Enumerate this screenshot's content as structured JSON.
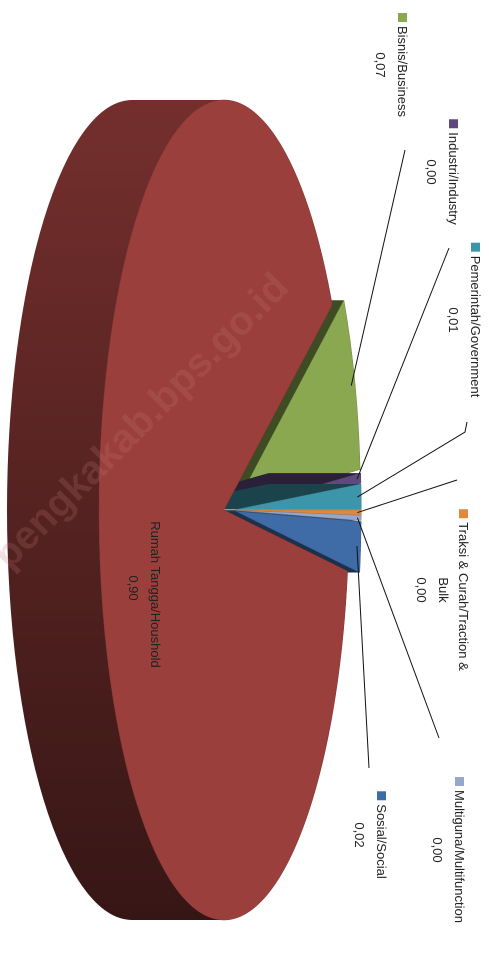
{
  "chart_data": {
    "type": "pie",
    "categories": [
      "Bisnis/Business",
      "Industri/Industry",
      "Pemerintah/Government",
      "Traksi & Curah/Traction & Bulk",
      "Multiguna/Multifunction",
      "Sosial/Social",
      "Rumah Tangga/Houshold"
    ],
    "values": [
      0.07,
      0.004,
      0.01,
      0.002,
      0.002,
      0.02,
      0.9
    ],
    "value_labels": [
      "0,07",
      "0,00",
      "0,01",
      "0,00",
      "0,00",
      "0,02",
      "0,90"
    ],
    "colors": [
      "#8aa84f",
      "#5e4a7e",
      "#3c95a9",
      "#e3883a",
      "#97a8cc",
      "#3f6ca6",
      "#9b3f3c"
    ],
    "watermark": "pengkakab.bps.go.id"
  }
}
